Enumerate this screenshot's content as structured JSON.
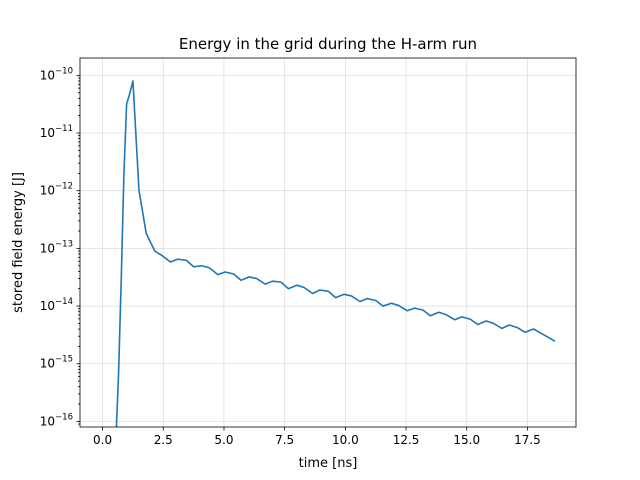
{
  "chart_data": {
    "type": "line",
    "title": "Energy in the grid during the H-arm run",
    "xlabel": "time [ns]",
    "ylabel": "stored field energy [J]",
    "xlim": [
      -0.93,
      19.5
    ],
    "ylim": [
      8e-17,
      2e-10
    ],
    "yscale": "log",
    "grid": true,
    "color": "#1f77b4",
    "xticks": [
      {
        "value": 0.0,
        "label": "0.0"
      },
      {
        "value": 2.5,
        "label": "2.5"
      },
      {
        "value": 5.0,
        "label": "5.0"
      },
      {
        "value": 7.5,
        "label": "7.5"
      },
      {
        "value": 10.0,
        "label": "10.0"
      },
      {
        "value": 12.5,
        "label": "12.5"
      },
      {
        "value": 15.0,
        "label": "15.0"
      },
      {
        "value": 17.5,
        "label": "17.5"
      }
    ],
    "yticks": [
      {
        "value": 1e-10,
        "base": "10",
        "exp": "−10"
      },
      {
        "value": 1e-11,
        "base": "10",
        "exp": "−11"
      },
      {
        "value": 1e-12,
        "base": "10",
        "exp": "−12"
      },
      {
        "value": 1e-13,
        "base": "10",
        "exp": "−13"
      },
      {
        "value": 1e-14,
        "base": "10",
        "exp": "−14"
      },
      {
        "value": 1e-15,
        "base": "10",
        "exp": "−15"
      },
      {
        "value": 1e-16,
        "base": "10",
        "exp": "−16"
      }
    ],
    "series": [
      {
        "x": [
          0.55,
          0.66,
          0.77,
          0.88,
          0.99,
          1.1,
          1.25,
          1.5,
          1.8,
          2.15,
          2.45,
          2.8,
          3.1,
          3.45,
          3.75,
          4.1,
          4.4,
          4.75,
          5.05,
          5.4,
          5.7,
          6.05,
          6.35,
          6.7,
          7.0,
          7.35,
          7.65,
          8.0,
          8.3,
          8.65,
          8.95,
          9.3,
          9.6,
          9.95,
          10.25,
          10.6,
          10.9,
          11.25,
          11.55,
          11.9,
          12.2,
          12.55,
          12.85,
          13.2,
          13.5,
          13.85,
          14.15,
          14.5,
          14.8,
          15.15,
          15.45,
          15.8,
          16.1,
          16.45,
          16.75,
          17.1,
          17.4,
          17.75,
          18.05,
          18.6
        ],
        "y": [
          5e-17,
          7e-16,
          3e-14,
          2e-12,
          3.2e-11,
          4.5e-11,
          8e-11,
          1e-12,
          1.8e-13,
          9e-14,
          7.5e-14,
          5.8e-14,
          6.5e-14,
          6.2e-14,
          4.8e-14,
          5e-14,
          4.6e-14,
          3.5e-14,
          3.9e-14,
          3.6e-14,
          2.8e-14,
          3.2e-14,
          3e-14,
          2.4e-14,
          2.7e-14,
          2.6e-14,
          2e-14,
          2.3e-14,
          2.1e-14,
          1.65e-14,
          1.9e-14,
          1.8e-14,
          1.4e-14,
          1.6e-14,
          1.5e-14,
          1.2e-14,
          1.35e-14,
          1.25e-14,
          1e-14,
          1.12e-14,
          1.02e-14,
          8.3e-15,
          9.2e-15,
          8.5e-15,
          6.8e-15,
          7.8e-15,
          7.1e-15,
          5.8e-15,
          6.5e-15,
          5.9e-15,
          4.8e-15,
          5.5e-15,
          5e-15,
          4.1e-15,
          4.7e-15,
          4.2e-15,
          3.5e-15,
          4e-15,
          3.4e-15,
          2.5e-15
        ]
      }
    ]
  }
}
